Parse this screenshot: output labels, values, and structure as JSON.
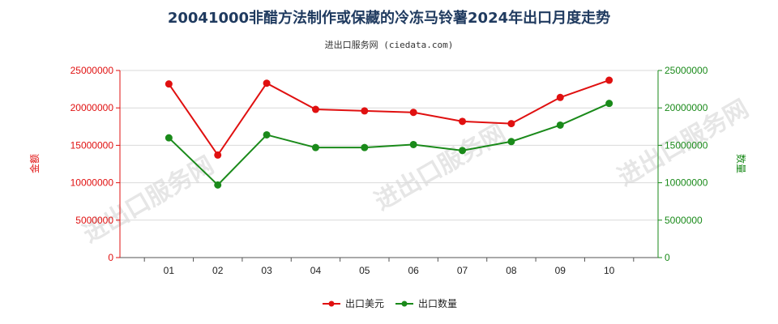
{
  "chart_data": {
    "type": "line",
    "title": "20041000非醋方法制作或保藏的冷冻马铃薯2024年出口月度走势",
    "subtitle": "进出口服务网 (ciedata.com)",
    "categories": [
      "01",
      "02",
      "03",
      "04",
      "05",
      "06",
      "07",
      "08",
      "09",
      "10"
    ],
    "ylabel_left": "金额",
    "ylabel_right": "数量",
    "ylim_left": [
      0,
      25000000
    ],
    "ylim_right": [
      0,
      25000000
    ],
    "yticks_left": [
      "0",
      "5000000",
      "10000000",
      "15000000",
      "20000000",
      "25000000"
    ],
    "yticks_right": [
      "0",
      "5000000",
      "10000000",
      "15000000",
      "20000000",
      "25000000"
    ],
    "series": [
      {
        "name": "出口美元",
        "axis": "left",
        "color": "#e01010",
        "values": [
          23200000,
          13700000,
          23300000,
          19800000,
          19600000,
          19400000,
          18200000,
          17900000,
          21400000,
          23700000
        ]
      },
      {
        "name": "出口数量",
        "axis": "right",
        "color": "#1a8a1a",
        "values": [
          16000000,
          9700000,
          16400000,
          14700000,
          14700000,
          15100000,
          14300000,
          15500000,
          17700000,
          20600000
        ]
      }
    ],
    "grid": true,
    "legend": "bottom-center",
    "watermark": "进出口服务网"
  }
}
